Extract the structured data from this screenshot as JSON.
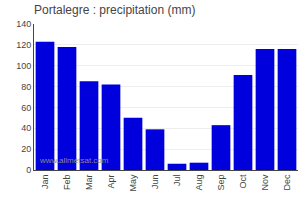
{
  "chart_data": {
    "type": "bar",
    "title": "Portalegre : precipitation (mm)",
    "categories": [
      "Jan",
      "Feb",
      "Mar",
      "Apr",
      "May",
      "Jun",
      "Jul",
      "Aug",
      "Sep",
      "Oct",
      "Nov",
      "Dec"
    ],
    "values": [
      123,
      118,
      85,
      82,
      50,
      39,
      6,
      7,
      43,
      91,
      116,
      116
    ],
    "color": "#0000dd",
    "ylim": [
      0,
      140
    ],
    "yticks": [
      0,
      20,
      40,
      60,
      80,
      100,
      120,
      140
    ],
    "grid": true,
    "annotations": [
      "www.allmetsat.com"
    ]
  }
}
